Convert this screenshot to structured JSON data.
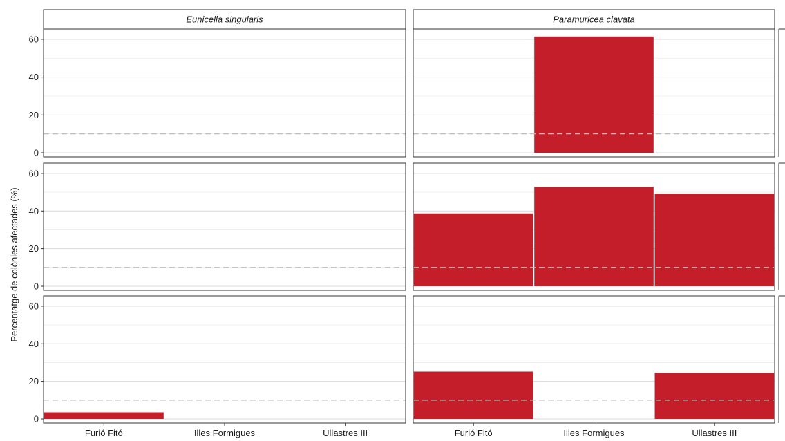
{
  "chart_data": {
    "type": "bar",
    "facet_columns": [
      "Eunicella singularis",
      "Paramuricea clavata"
    ],
    "categories": [
      "Furió Fitó",
      "Illes Formigues",
      "Ullastres III"
    ],
    "ylabel": "Percentatge de colònies afectades (%)",
    "xlabel": "",
    "ylim": [
      0,
      64
    ],
    "yticks": [
      0,
      20,
      40,
      60
    ],
    "reference_line": 10,
    "bar_color": "#c41e2b",
    "grid": true,
    "panels": [
      {
        "row": 0,
        "col": 0,
        "values": [
          0,
          0,
          0
        ]
      },
      {
        "row": 0,
        "col": 1,
        "values": [
          0,
          61.5,
          0
        ]
      },
      {
        "row": 1,
        "col": 0,
        "values": [
          0,
          0,
          0
        ]
      },
      {
        "row": 1,
        "col": 1,
        "values": [
          38.7,
          52.8,
          49.2
        ]
      },
      {
        "row": 2,
        "col": 0,
        "values": [
          3.5,
          0,
          0
        ]
      },
      {
        "row": 2,
        "col": 1,
        "values": [
          25.2,
          0,
          24.6
        ]
      }
    ]
  }
}
